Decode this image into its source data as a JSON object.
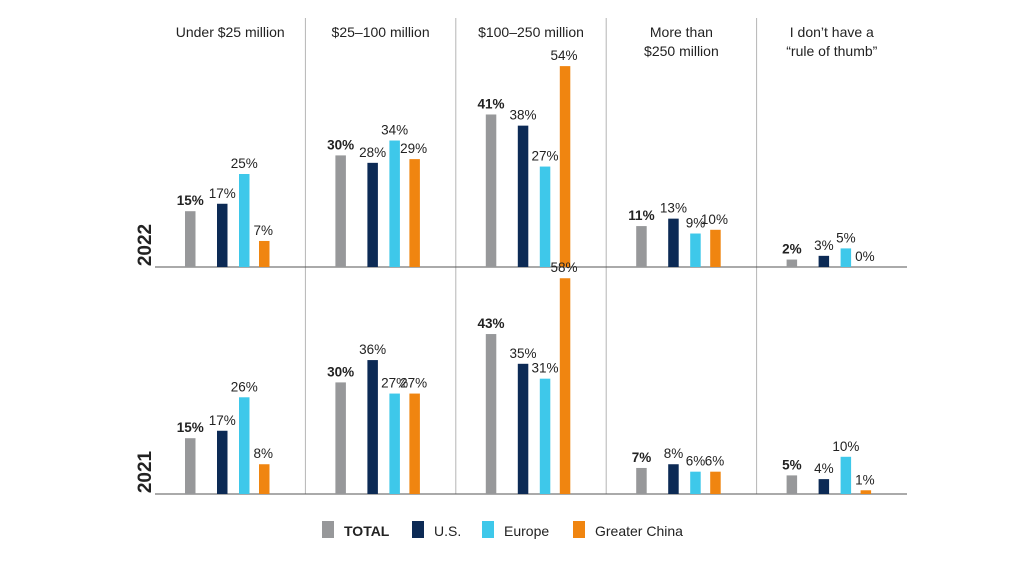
{
  "chart_data": {
    "type": "bar",
    "categories": [
      [
        "Under $25 million"
      ],
      [
        "$25–100 million"
      ],
      [
        "$100–250 million"
      ],
      [
        "More than",
        "$250 million"
      ],
      [
        "I don’t have a",
        "“rule of thumb”"
      ]
    ],
    "panels": [
      {
        "year": "2022",
        "series": [
          {
            "name": "TOTAL",
            "values": [
              15,
              30,
              41,
              11,
              2
            ]
          },
          {
            "name": "U.S.",
            "values": [
              17,
              28,
              38,
              13,
              3
            ]
          },
          {
            "name": "Europe",
            "values": [
              25,
              34,
              27,
              9,
              5
            ]
          },
          {
            "name": "Greater China",
            "values": [
              7,
              29,
              54,
              10,
              0
            ]
          }
        ]
      },
      {
        "year": "2021",
        "series": [
          {
            "name": "TOTAL",
            "values": [
              15,
              30,
              43,
              7,
              5
            ]
          },
          {
            "name": "U.S.",
            "values": [
              17,
              36,
              35,
              8,
              4
            ]
          },
          {
            "name": "Europe",
            "values": [
              26,
              27,
              31,
              6,
              10
            ]
          },
          {
            "name": "Greater China",
            "values": [
              8,
              27,
              58,
              6,
              1
            ]
          }
        ]
      }
    ],
    "colors": [
      "#97989a",
      "#0c2a55",
      "#3ec8ea",
      "#f08510"
    ],
    "value_suffix": "%",
    "legend": {
      "position": "bottom",
      "labels": [
        "TOTAL",
        "U.S.",
        "Europe",
        "Greater China"
      ]
    },
    "ylim": [
      0,
      60
    ],
    "grid": false
  }
}
